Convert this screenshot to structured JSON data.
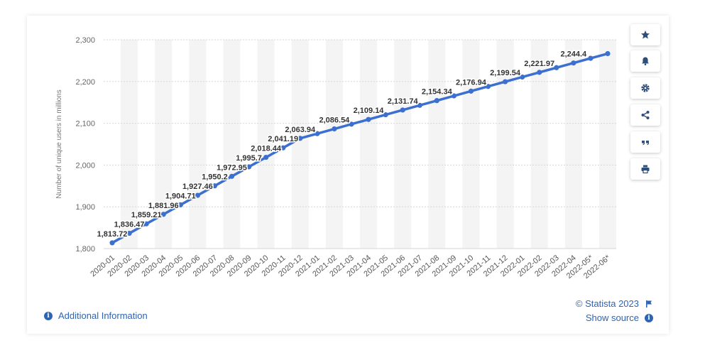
{
  "sidebar": {
    "buttons": [
      {
        "name": "favorite-button",
        "icon": "star-icon"
      },
      {
        "name": "notification-button",
        "icon": "bell-icon"
      },
      {
        "name": "settings-button",
        "icon": "gear-icon"
      },
      {
        "name": "share-button",
        "icon": "share-icon"
      },
      {
        "name": "cite-button",
        "icon": "quote-icon"
      },
      {
        "name": "print-button",
        "icon": "print-icon"
      }
    ]
  },
  "footer": {
    "additional_info": "Additional Information",
    "copyright": "© Statista 2023",
    "show_source": "Show source"
  },
  "colors": {
    "line": "#3b6fd0",
    "accent": "#2d64b4",
    "grid": "#d6d6d6",
    "band": "#f4f4f4"
  },
  "chart_data": {
    "type": "line",
    "title": "",
    "xlabel": "",
    "ylabel": "Number of unique users in millions",
    "ylim": [
      1800,
      2300
    ],
    "yticks": [
      "1,800",
      "1,900",
      "2,000",
      "2,100",
      "2,200",
      "2,300"
    ],
    "grid": true,
    "categories": [
      "2020-01",
      "2020-02",
      "2020-03",
      "2020-04",
      "2020-05",
      "2020-06",
      "2020-07",
      "2020-08",
      "2020-09",
      "2020-10",
      "2020-11",
      "2020-12",
      "2021-01",
      "2021-02",
      "2021-03",
      "2021-04",
      "2021-05",
      "2021-06",
      "2021-07",
      "2021-08",
      "2021-09",
      "2021-10",
      "2021-11",
      "2021-12",
      "2022-01",
      "2022-02",
      "2022-03",
      "2022-04",
      "2022-05*",
      "2022-06*"
    ],
    "series": [
      {
        "values": [
          1813.72,
          1836.47,
          1859.21,
          1881.96,
          1904.71,
          1927.46,
          1950.2,
          1972.95,
          1995.7,
          2018.44,
          2041.19,
          2063.94,
          2075.24,
          2086.54,
          2097.84,
          2109.14,
          2120.44,
          2131.74,
          2143.04,
          2154.34,
          2165.64,
          2176.94,
          2188.24,
          2199.54,
          2210.76,
          2221.97,
          2233.19,
          2244.4,
          2255.62,
          2266.83
        ],
        "labels": [
          "1,813.72",
          "1,836.47",
          "1,859.21",
          "1,881.96",
          "1,904.71",
          "1,927.46",
          "1,950.2",
          "1,972.95",
          "1,995.7",
          "2,018.44",
          "2,041.19",
          "2,063.94",
          "",
          "2,086.54",
          "",
          "2,109.14",
          "",
          "2,131.74",
          "",
          "2,154.34",
          "",
          "2,176.94",
          "",
          "2,199.54",
          "",
          "2,221.97",
          "",
          "2,244.4",
          "",
          ""
        ]
      }
    ]
  }
}
